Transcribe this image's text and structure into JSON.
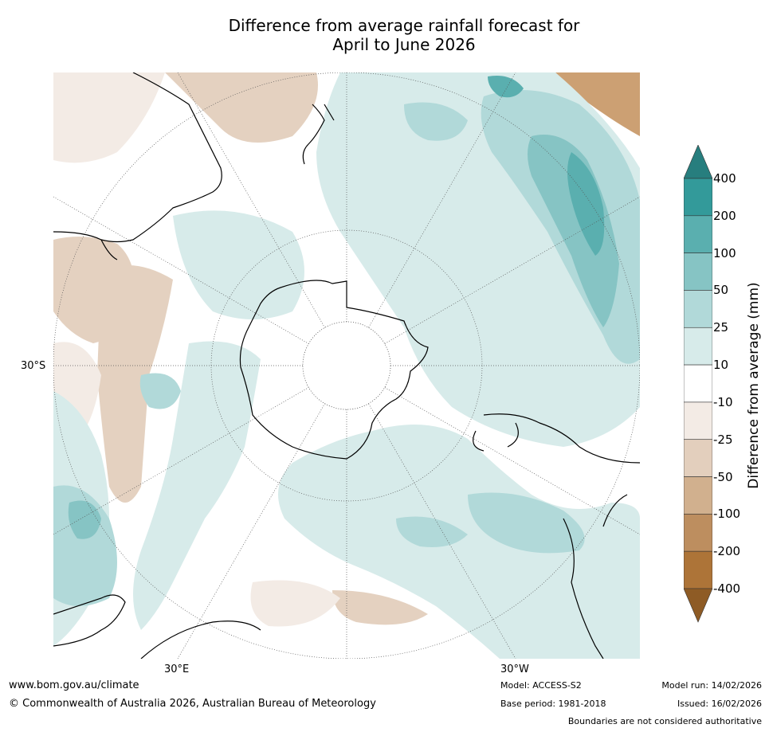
{
  "title_line1": "Difference from average rainfall forecast for",
  "title_line2": "April to June 2026",
  "map_labels": {
    "lat": "30°S",
    "lon_east": "30°E",
    "lon_west": "30°W"
  },
  "colorbar": {
    "title": "Difference from average (mm)",
    "ticks": [
      "400",
      "200",
      "100",
      "50",
      "25",
      "10",
      "-10",
      "-25",
      "-50",
      "-100",
      "-200",
      "-400"
    ],
    "colors": [
      "#277e7e",
      "#339a9a",
      "#5aafaf",
      "#86c4c4",
      "#b1d9d9",
      "#d7ebea",
      "#ffffff",
      "#f3ebe5",
      "#e3cfbd",
      "#d1b08e",
      "#bd8e5f",
      "#ad7438",
      "#8e5b25"
    ]
  },
  "footer": {
    "website": "www.bom.gov.au/climate",
    "copyright": "© Commonwealth of Australia 2026, Australian Bureau of Meteorology",
    "model": "Model: ACCESS-S2",
    "base_period": "Base period: 1981-2018",
    "model_run": "Model run: 14/02/2026",
    "issued": "Issued: 16/02/2026",
    "disclaimer": "Boundaries are not considered authoritative"
  }
}
